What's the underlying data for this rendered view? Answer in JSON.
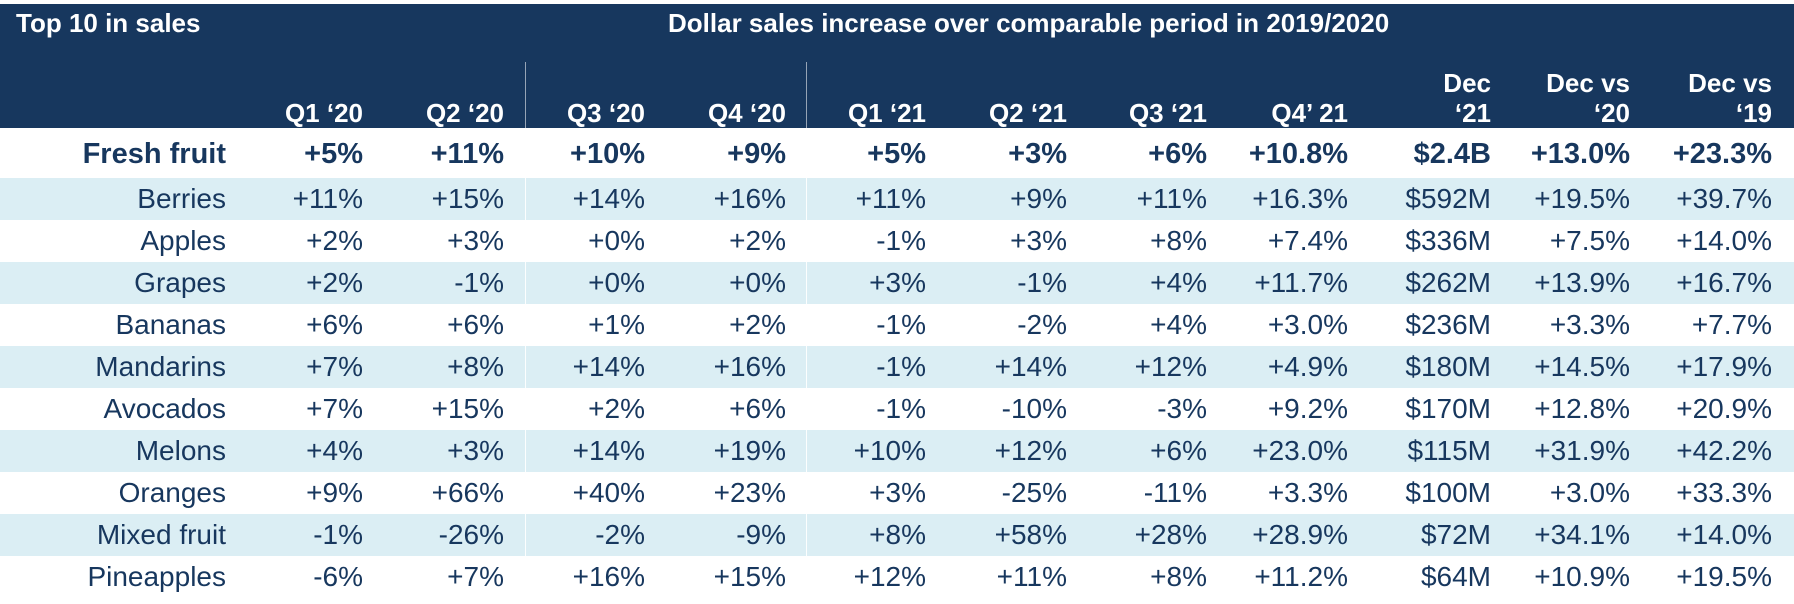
{
  "header": {
    "left_title": "Top 10 in sales",
    "main_title": "Dollar sales increase over comparable period in 2019/2020"
  },
  "chart_data": {
    "type": "table",
    "title": "Dollar sales increase over comparable period in 2019/2020",
    "row_header_label": "Top 10 in sales",
    "columns": [
      "Q1 ‘20",
      "Q2 ‘20",
      "Q3 ‘20",
      "Q4 ‘20",
      "Q1 ‘21",
      "Q2 ‘21",
      "Q3 ‘21",
      "Q4’ 21",
      "Dec\n‘21",
      "Dec vs\n‘20",
      "Dec vs\n‘19"
    ],
    "rows": [
      {
        "label": "Fresh fruit",
        "values": [
          "+5%",
          "+11%",
          "+10%",
          "+9%",
          "+5%",
          "+3%",
          "+6%",
          "+10.8%",
          "$2.4B",
          "+13.0%",
          "+23.3%"
        ]
      },
      {
        "label": "Berries",
        "values": [
          "+11%",
          "+15%",
          "+14%",
          "+16%",
          "+11%",
          "+9%",
          "+11%",
          "+16.3%",
          "$592M",
          "+19.5%",
          "+39.7%"
        ]
      },
      {
        "label": "Apples",
        "values": [
          "+2%",
          "+3%",
          "+0%",
          "+2%",
          "-1%",
          "+3%",
          "+8%",
          "+7.4%",
          "$336M",
          "+7.5%",
          "+14.0%"
        ]
      },
      {
        "label": "Grapes",
        "values": [
          "+2%",
          "-1%",
          "+0%",
          "+0%",
          "+3%",
          "-1%",
          "+4%",
          "+11.7%",
          "$262M",
          "+13.9%",
          "+16.7%"
        ]
      },
      {
        "label": "Bananas",
        "values": [
          "+6%",
          "+6%",
          "+1%",
          "+2%",
          "-1%",
          "-2%",
          "+4%",
          "+3.0%",
          "$236M",
          "+3.3%",
          "+7.7%"
        ]
      },
      {
        "label": "Mandarins",
        "values": [
          "+7%",
          "+8%",
          "+14%",
          "+16%",
          "-1%",
          "+14%",
          "+12%",
          "+4.9%",
          "$180M",
          "+14.5%",
          "+17.9%"
        ]
      },
      {
        "label": "Avocados",
        "values": [
          "+7%",
          "+15%",
          "+2%",
          "+6%",
          "-1%",
          "-10%",
          "-3%",
          "+9.2%",
          "$170M",
          "+12.8%",
          "+20.9%"
        ]
      },
      {
        "label": "Melons",
        "values": [
          "+4%",
          "+3%",
          "+14%",
          "+19%",
          "+10%",
          "+12%",
          "+6%",
          "+23.0%",
          "$115M",
          "+31.9%",
          "+42.2%"
        ]
      },
      {
        "label": "Oranges",
        "values": [
          "+9%",
          "+66%",
          "+40%",
          "+23%",
          "+3%",
          "-25%",
          "-11%",
          "+3.3%",
          "$100M",
          "+3.0%",
          "+33.3%"
        ]
      },
      {
        "label": "Mixed fruit",
        "values": [
          "-1%",
          "-26%",
          "-2%",
          "-9%",
          "+8%",
          "+58%",
          "+28%",
          "+28.9%",
          "$72M",
          "+34.1%",
          "+14.0%"
        ]
      },
      {
        "label": "Pineapples",
        "values": [
          "-6%",
          "+7%",
          "+16%",
          "+15%",
          "+12%",
          "+11%",
          "+8%",
          "+11.2%",
          "$64M",
          "+10.9%",
          "+19.5%"
        ]
      }
    ]
  },
  "colors": {
    "header_bg": "#17375e",
    "header_text": "#ffffff",
    "body_text": "#17375e",
    "band_bg": "#dbeef4",
    "white": "#ffffff"
  }
}
